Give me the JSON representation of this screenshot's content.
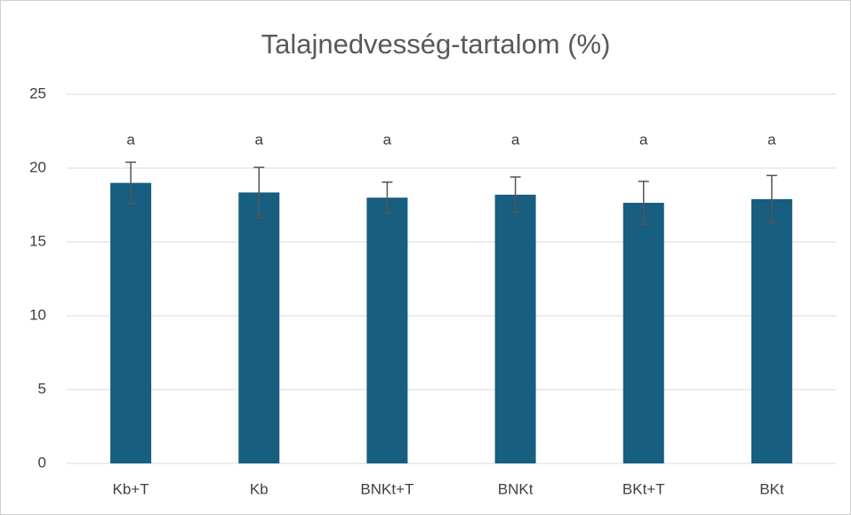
{
  "chart_data": {
    "type": "bar",
    "title": "Talajnedvesség-tartalom (%)",
    "categories": [
      "Kb+T",
      "Kb",
      "BNKt+T",
      "BNKt",
      "BKt+T",
      "BKt"
    ],
    "values": [
      19.0,
      18.35,
      18.0,
      18.2,
      17.65,
      17.9
    ],
    "errors": [
      1.4,
      1.7,
      1.05,
      1.2,
      1.45,
      1.6
    ],
    "significance_labels": [
      "a",
      "a",
      "a",
      "a",
      "a",
      "a"
    ],
    "color": "#175e80",
    "error_color": "#555555",
    "ylim": [
      0,
      25
    ],
    "yticks": [
      0,
      5,
      10,
      15,
      20,
      25
    ],
    "grid": true
  }
}
